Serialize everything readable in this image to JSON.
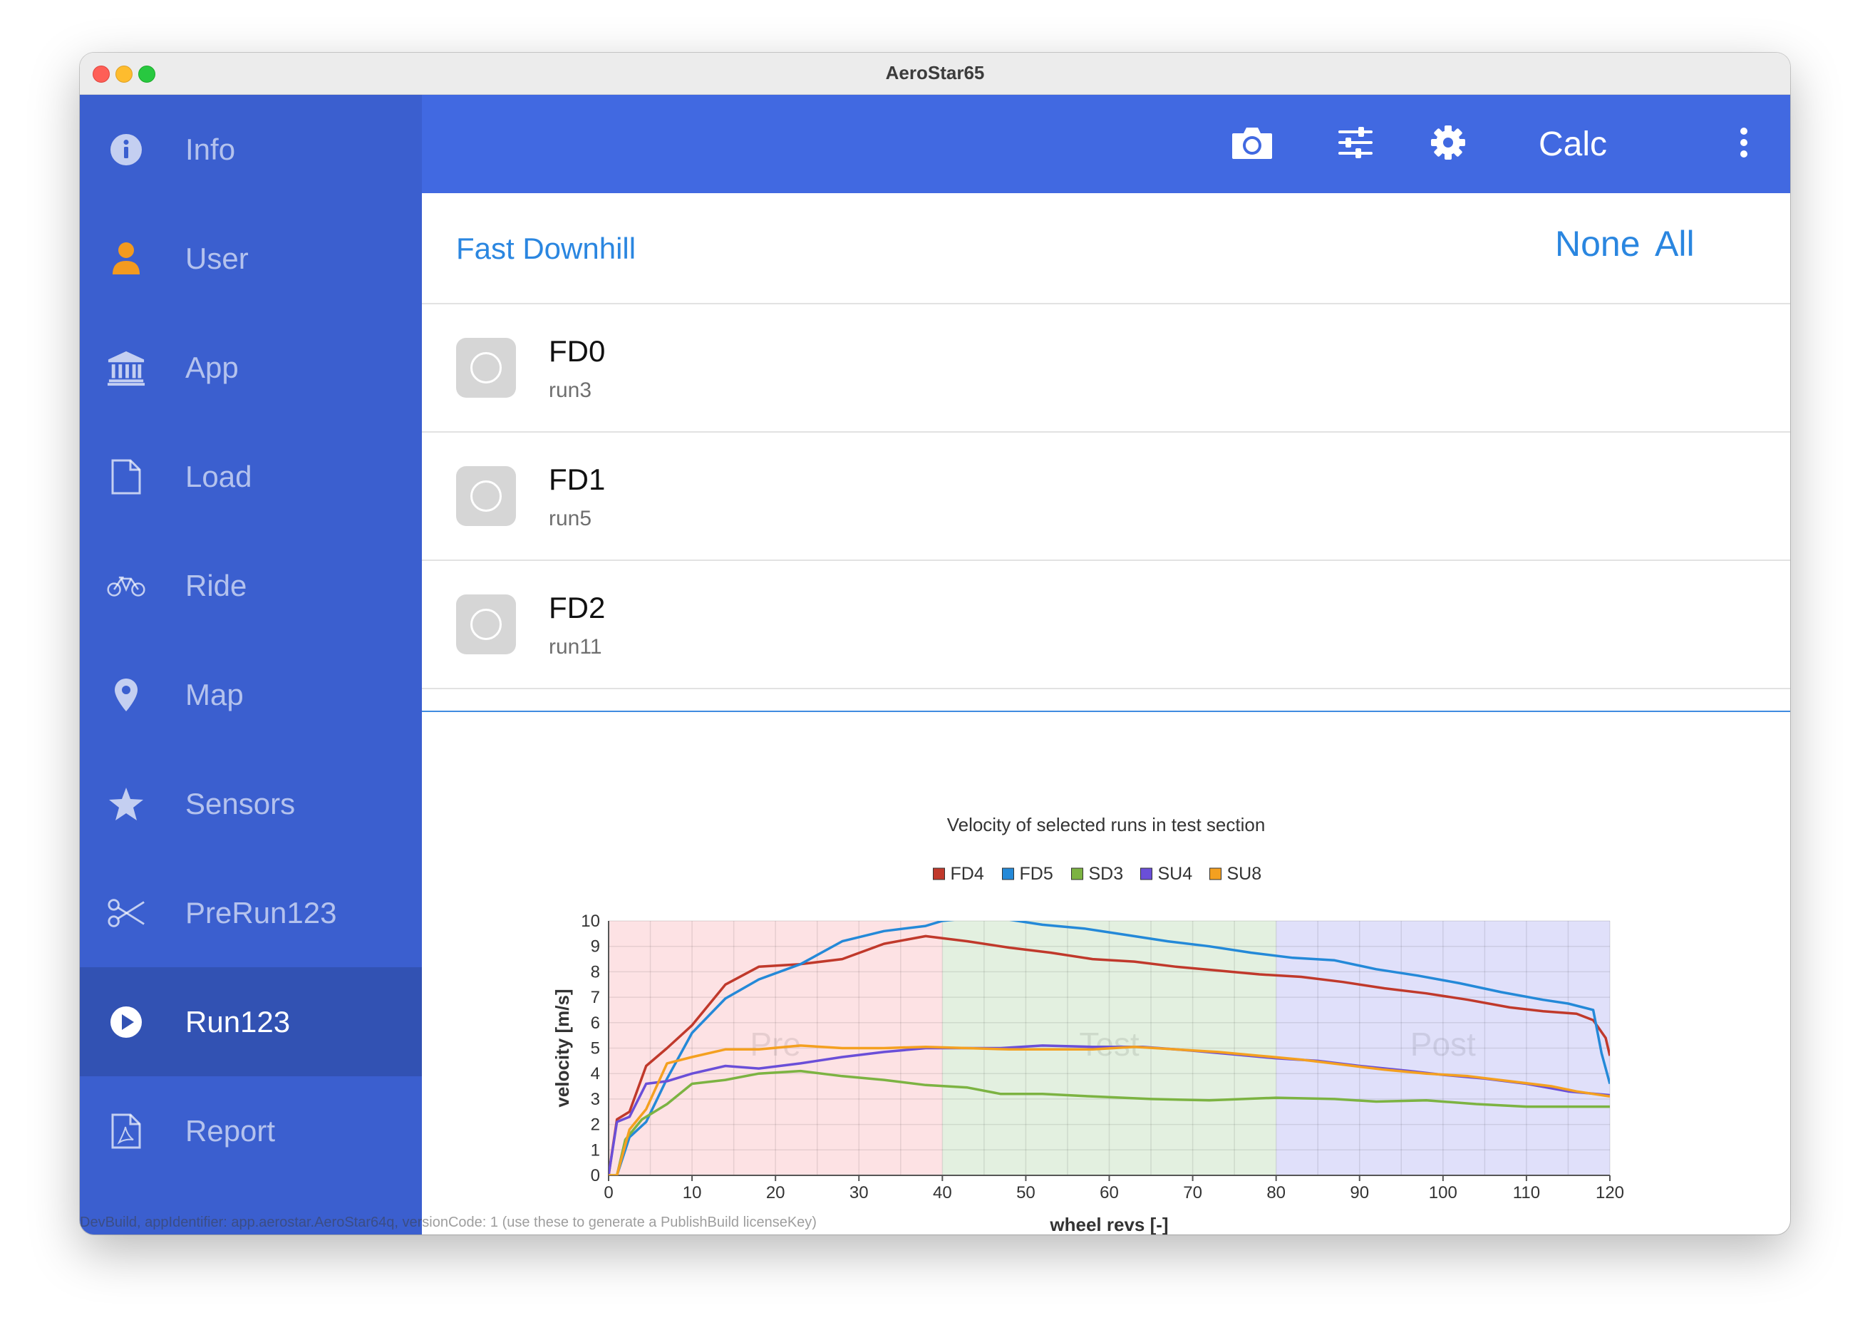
{
  "window": {
    "title": "AeroStar65"
  },
  "sidebar": {
    "items": [
      {
        "label": "Info",
        "icon": "info-icon"
      },
      {
        "label": "User",
        "icon": "user-icon"
      },
      {
        "label": "App",
        "icon": "bank-icon"
      },
      {
        "label": "Load",
        "icon": "file-icon"
      },
      {
        "label": "Ride",
        "icon": "bicycle-icon"
      },
      {
        "label": "Map",
        "icon": "map-pin-icon"
      },
      {
        "label": "Sensors",
        "icon": "star-icon"
      },
      {
        "label": "PreRun123",
        "icon": "scissors-icon"
      },
      {
        "label": "Run123",
        "icon": "play-circle-icon",
        "active": true
      },
      {
        "label": "Report",
        "icon": "pdf-file-icon"
      }
    ]
  },
  "toolbar": {
    "calc_label": "Calc",
    "icons": [
      "camera-icon",
      "sliders-icon",
      "gear-icon",
      "more-vertical-icon"
    ]
  },
  "list": {
    "group_title": "Fast Downhill",
    "none_label": "None",
    "all_label": "All",
    "rows": [
      {
        "title": "FD0",
        "subtitle": "run3"
      },
      {
        "title": "FD1",
        "subtitle": "run5"
      },
      {
        "title": "FD2",
        "subtitle": "run11"
      }
    ]
  },
  "footer_note": "DevBuild, appIdentifier: app.aerostar.AeroStar64q, versionCode: 1 (use these to generate a PublishBuild licenseKey)",
  "colors": {
    "sidebar": "#3b5fcf",
    "topbar": "#4169e1",
    "accent": "#2a86e0",
    "user_icon": "#f39a1f"
  },
  "chart_data": {
    "type": "line",
    "title": "Velocity of selected runs in test section",
    "xlabel": "wheel revs [-]",
    "ylabel": "velocity [m/s]",
    "xlim": [
      0,
      120
    ],
    "ylim": [
      0,
      10
    ],
    "xticks": [
      0,
      10,
      20,
      30,
      40,
      50,
      60,
      70,
      80,
      90,
      100,
      110,
      120
    ],
    "yticks": [
      0,
      1,
      2,
      3,
      4,
      5,
      6,
      7,
      8,
      9,
      10
    ],
    "grid": true,
    "legend_position": "top-center",
    "sections": [
      {
        "label": "Pre",
        "from": 0,
        "to": 40,
        "color": "#fde2e4"
      },
      {
        "label": "Test",
        "from": 40,
        "to": 80,
        "color": "#e3f0e0"
      },
      {
        "label": "Post",
        "from": 80,
        "to": 120,
        "color": "#e0e0fa"
      }
    ],
    "series": [
      {
        "name": "FD4",
        "color": "#c0392b",
        "points": [
          [
            0,
            0
          ],
          [
            1,
            2.2
          ],
          [
            2.5,
            2.5
          ],
          [
            4.5,
            4.3
          ],
          [
            7,
            5
          ],
          [
            10,
            5.9
          ],
          [
            14,
            7.5
          ],
          [
            18,
            8.2
          ],
          [
            23,
            8.3
          ],
          [
            28,
            8.5
          ],
          [
            33,
            9.1
          ],
          [
            38,
            9.4
          ],
          [
            43,
            9.2
          ],
          [
            48,
            8.95
          ],
          [
            53,
            8.75
          ],
          [
            58,
            8.5
          ],
          [
            63,
            8.4
          ],
          [
            68,
            8.2
          ],
          [
            73,
            8.05
          ],
          [
            78,
            7.9
          ],
          [
            83,
            7.8
          ],
          [
            88,
            7.6
          ],
          [
            93,
            7.35
          ],
          [
            98,
            7.15
          ],
          [
            103,
            6.9
          ],
          [
            108,
            6.6
          ],
          [
            112,
            6.45
          ],
          [
            116,
            6.35
          ],
          [
            118,
            6.1
          ],
          [
            119.5,
            5.4
          ],
          [
            120,
            4.7
          ]
        ]
      },
      {
        "name": "FD5",
        "color": "#2489d8",
        "points": [
          [
            0,
            0
          ],
          [
            1,
            0
          ],
          [
            2.5,
            1.5
          ],
          [
            4.5,
            2.1
          ],
          [
            7,
            3.8
          ],
          [
            10,
            5.6
          ],
          [
            14,
            6.95
          ],
          [
            18,
            7.7
          ],
          [
            23,
            8.3
          ],
          [
            28,
            9.2
          ],
          [
            33,
            9.6
          ],
          [
            38,
            9.8
          ],
          [
            40,
            10
          ],
          [
            43,
            10.1
          ],
          [
            48,
            10.05
          ],
          [
            52,
            9.85
          ],
          [
            57,
            9.7
          ],
          [
            62,
            9.45
          ],
          [
            67,
            9.2
          ],
          [
            72,
            9
          ],
          [
            77,
            8.75
          ],
          [
            82,
            8.55
          ],
          [
            87,
            8.45
          ],
          [
            92,
            8.1
          ],
          [
            97,
            7.85
          ],
          [
            102,
            7.55
          ],
          [
            107,
            7.2
          ],
          [
            112,
            6.9
          ],
          [
            115,
            6.75
          ],
          [
            118,
            6.5
          ],
          [
            119,
            4.8
          ],
          [
            120,
            3.6
          ]
        ]
      },
      {
        "name": "SD3",
        "color": "#7cb342",
        "points": [
          [
            0,
            0
          ],
          [
            1,
            0
          ],
          [
            2,
            1.4
          ],
          [
            4,
            2.2
          ],
          [
            7,
            2.8
          ],
          [
            10,
            3.6
          ],
          [
            14,
            3.75
          ],
          [
            18,
            4
          ],
          [
            23,
            4.1
          ],
          [
            28,
            3.9
          ],
          [
            33,
            3.75
          ],
          [
            38,
            3.55
          ],
          [
            43,
            3.45
          ],
          [
            47,
            3.2
          ],
          [
            52,
            3.2
          ],
          [
            58,
            3.1
          ],
          [
            65,
            3
          ],
          [
            72,
            2.95
          ],
          [
            80,
            3.05
          ],
          [
            87,
            3
          ],
          [
            92,
            2.9
          ],
          [
            98,
            2.95
          ],
          [
            104,
            2.8
          ],
          [
            110,
            2.7
          ],
          [
            116,
            2.7
          ],
          [
            120,
            2.7
          ]
        ]
      },
      {
        "name": "SU4",
        "color": "#6a4fd8",
        "points": [
          [
            0,
            0
          ],
          [
            1,
            2.1
          ],
          [
            2.5,
            2.3
          ],
          [
            4.5,
            3.6
          ],
          [
            7,
            3.7
          ],
          [
            10,
            4
          ],
          [
            14,
            4.3
          ],
          [
            18,
            4.2
          ],
          [
            23,
            4.4
          ],
          [
            28,
            4.65
          ],
          [
            33,
            4.85
          ],
          [
            38,
            5
          ],
          [
            42,
            5
          ],
          [
            47,
            5
          ],
          [
            52,
            5.1
          ],
          [
            58,
            5.05
          ],
          [
            64,
            5.05
          ],
          [
            70,
            4.9
          ],
          [
            75,
            4.75
          ],
          [
            80,
            4.6
          ],
          [
            85,
            4.5
          ],
          [
            90,
            4.3
          ],
          [
            96,
            4.1
          ],
          [
            100,
            3.95
          ],
          [
            105,
            3.8
          ],
          [
            110,
            3.6
          ],
          [
            115,
            3.3
          ],
          [
            120,
            3.15
          ]
        ]
      },
      {
        "name": "SU8",
        "color": "#f4a020",
        "points": [
          [
            0,
            0
          ],
          [
            1,
            0
          ],
          [
            2.5,
            1.8
          ],
          [
            4.5,
            2.6
          ],
          [
            7,
            4.4
          ],
          [
            10,
            4.65
          ],
          [
            14,
            4.95
          ],
          [
            18,
            4.95
          ],
          [
            23,
            5.1
          ],
          [
            28,
            5
          ],
          [
            33,
            5
          ],
          [
            38,
            5.05
          ],
          [
            43,
            5
          ],
          [
            48,
            4.95
          ],
          [
            53,
            4.95
          ],
          [
            58,
            4.95
          ],
          [
            63,
            5.05
          ],
          [
            68,
            4.95
          ],
          [
            73,
            4.85
          ],
          [
            78,
            4.7
          ],
          [
            83,
            4.55
          ],
          [
            88,
            4.35
          ],
          [
            93,
            4.15
          ],
          [
            98,
            4
          ],
          [
            103,
            3.9
          ],
          [
            108,
            3.7
          ],
          [
            113,
            3.5
          ],
          [
            116,
            3.3
          ],
          [
            120,
            3.1
          ]
        ]
      }
    ]
  }
}
